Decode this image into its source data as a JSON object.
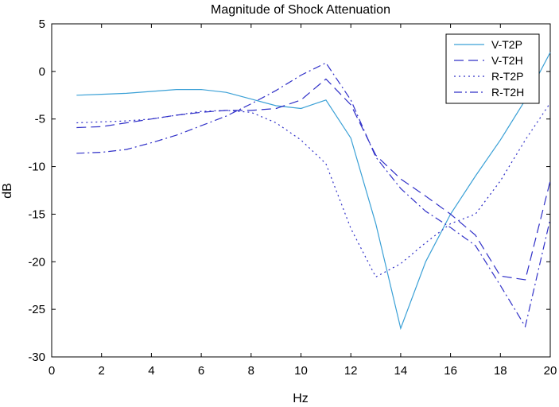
{
  "chart_data": {
    "type": "line",
    "title": "Magnitude of Shock Attenuation",
    "xlabel": "Hz",
    "ylabel": "dB",
    "xlim": [
      0,
      20
    ],
    "ylim": [
      -30,
      5
    ],
    "x_ticks": [
      0,
      2,
      4,
      6,
      8,
      10,
      12,
      14,
      16,
      18,
      20
    ],
    "y_ticks": [
      -30,
      -25,
      -20,
      -15,
      -10,
      -5,
      0,
      5
    ],
    "grid": false,
    "legend_position": "top-right",
    "x": [
      1,
      2,
      3,
      4,
      5,
      6,
      7,
      8,
      9,
      10,
      11,
      12,
      13,
      14,
      15,
      16,
      17,
      18,
      19,
      20
    ],
    "series": [
      {
        "name": "V-T2P",
        "color": "#3aa0d6",
        "dash": "solid",
        "values": [
          -2.5,
          -2.4,
          -2.3,
          -2.1,
          -1.9,
          -1.9,
          -2.2,
          -2.9,
          -3.6,
          -3.9,
          -3.0,
          -7.0,
          -16.0,
          -27.0,
          -20.0,
          -15.0,
          -11.0,
          -7.2,
          -3.0,
          2.0
        ]
      },
      {
        "name": "V-T2H",
        "color": "#3030c8",
        "dash": "dashed",
        "values": [
          -5.9,
          -5.8,
          -5.4,
          -5.0,
          -4.6,
          -4.3,
          -4.1,
          -4.1,
          -3.9,
          -3.0,
          -0.8,
          -3.5,
          -8.8,
          -11.3,
          -13.1,
          -15.0,
          -17.2,
          -21.5,
          -21.9,
          -11.5
        ]
      },
      {
        "name": "R-T2P",
        "color": "#3030c8",
        "dash": "dotted",
        "values": [
          -5.4,
          -5.3,
          -5.2,
          -5.0,
          -4.6,
          -4.2,
          -4.1,
          -4.3,
          -5.4,
          -7.2,
          -9.7,
          -16.5,
          -21.6,
          -20.2,
          -18.0,
          -16.0,
          -15.0,
          -11.5,
          -7.2,
          -3.3
        ]
      },
      {
        "name": "R-T2H",
        "color": "#3030c8",
        "dash": "dashdot",
        "values": [
          -8.6,
          -8.5,
          -8.2,
          -7.5,
          -6.7,
          -5.7,
          -4.7,
          -3.4,
          -2.0,
          -0.4,
          0.9,
          -3.0,
          -9.0,
          -12.3,
          -14.7,
          -16.4,
          -18.3,
          -22.5,
          -26.8,
          -15.5
        ]
      }
    ]
  }
}
